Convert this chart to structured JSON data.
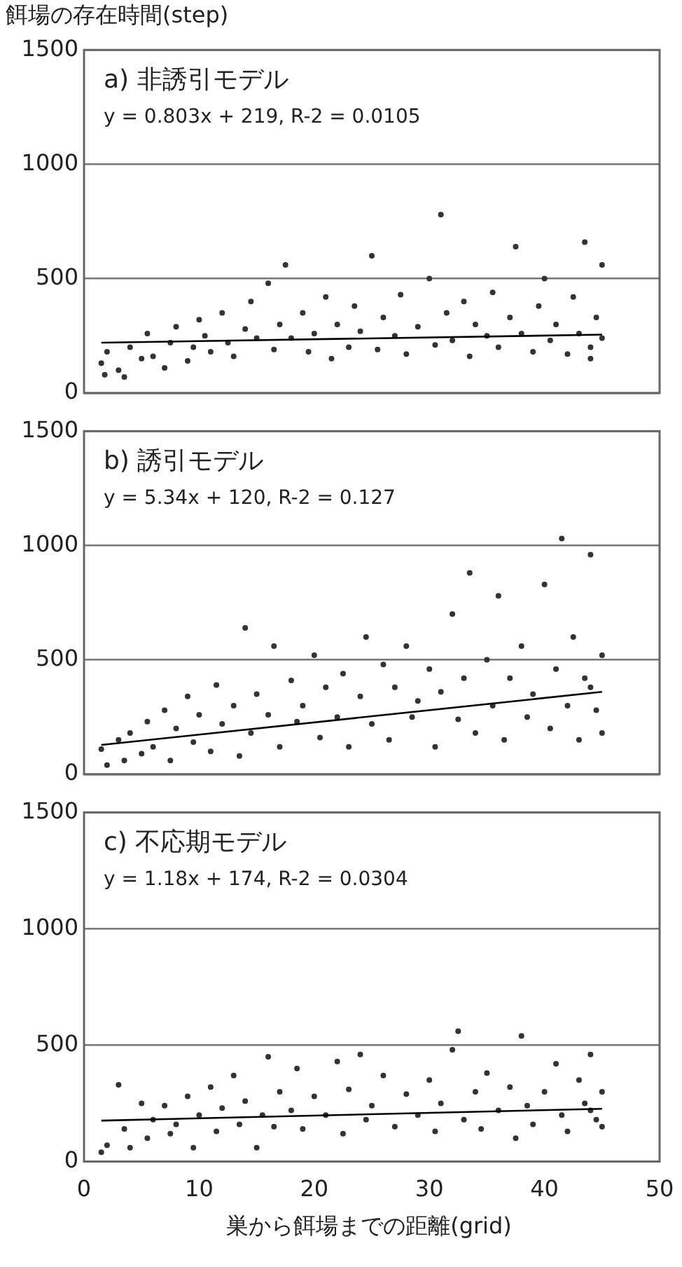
{
  "chart_data": [
    {
      "type": "scatter",
      "title": "a) 非誘引モデル",
      "subtitle": "y = 0.803x + 219, R-2 = 0.0105",
      "ylabel": "餌場の存在時間(step)",
      "xlim": [
        0,
        50
      ],
      "xticks": [
        0,
        10,
        20,
        30,
        40,
        50
      ],
      "ylim": [
        0,
        1500
      ],
      "yticks": [
        0,
        500,
        1000,
        1500
      ],
      "grid": "y",
      "tick_labels": "y",
      "series": [
        {
          "color": "#333333",
          "marker": "circle",
          "x": [
            1.5,
            1.8,
            2,
            3,
            3.5,
            4,
            5,
            5.5,
            6,
            7,
            7.5,
            8,
            9,
            9.5,
            10,
            10.5,
            11,
            12,
            12.5,
            13,
            14,
            14.5,
            15,
            16,
            16.5,
            17,
            17.5,
            18,
            19,
            19.5,
            20,
            21,
            21.5,
            22,
            23,
            23.5,
            24,
            25,
            25.5,
            26,
            27,
            27.5,
            28,
            29,
            30,
            30.5,
            31,
            31.5,
            32,
            33,
            33.5,
            34,
            35,
            35.5,
            36,
            37,
            37.5,
            38,
            39,
            39.5,
            40,
            40.5,
            41,
            42,
            42.5,
            43,
            43.5,
            44,
            44.5,
            45,
            45,
            44
          ],
          "values": [
            130,
            80,
            180,
            100,
            70,
            200,
            150,
            260,
            160,
            110,
            220,
            290,
            140,
            200,
            320,
            250,
            180,
            350,
            220,
            160,
            280,
            400,
            240,
            480,
            190,
            300,
            560,
            240,
            350,
            180,
            260,
            420,
            150,
            300,
            200,
            380,
            270,
            600,
            190,
            330,
            250,
            430,
            170,
            290,
            500,
            210,
            780,
            350,
            230,
            400,
            160,
            300,
            250,
            440,
            200,
            330,
            640,
            260,
            180,
            380,
            500,
            230,
            300,
            170,
            420,
            260,
            660,
            200,
            330,
            560,
            240,
            150
          ]
        },
        {
          "type": "line",
          "color": "#000000",
          "marker": "none",
          "x": [
            1.5,
            45
          ],
          "values": [
            220,
            255
          ]
        }
      ]
    },
    {
      "type": "scatter",
      "title": "b) 誘引モデル",
      "subtitle": "y = 5.34x + 120, R-2 = 0.127",
      "xlim": [
        0,
        50
      ],
      "xticks": [
        0,
        10,
        20,
        30,
        40,
        50
      ],
      "ylim": [
        0,
        1500
      ],
      "yticks": [
        0,
        500,
        1000,
        1500
      ],
      "grid": "y",
      "tick_labels": "y",
      "series": [
        {
          "color": "#333333",
          "marker": "circle",
          "x": [
            1.5,
            2,
            3,
            3.5,
            4,
            5,
            5.5,
            6,
            7,
            7.5,
            8,
            9,
            9.5,
            10,
            11,
            11.5,
            12,
            13,
            13.5,
            14,
            14.5,
            15,
            16,
            16.5,
            17,
            18,
            18.5,
            19,
            20,
            20.5,
            21,
            22,
            22.5,
            23,
            24,
            24.5,
            25,
            26,
            26.5,
            27,
            28,
            28.5,
            29,
            30,
            30.5,
            31,
            32,
            32.5,
            33,
            33.5,
            34,
            35,
            35.5,
            36,
            36.5,
            37,
            38,
            38.5,
            39,
            40,
            40.5,
            41,
            41.5,
            42,
            42.5,
            43,
            43.5,
            44,
            44.5,
            45,
            45,
            44
          ],
          "values": [
            110,
            40,
            150,
            60,
            180,
            90,
            230,
            120,
            280,
            60,
            200,
            340,
            140,
            260,
            100,
            390,
            220,
            300,
            80,
            640,
            180,
            350,
            260,
            560,
            120,
            410,
            230,
            300,
            520,
            160,
            380,
            250,
            440,
            120,
            340,
            600,
            220,
            480,
            150,
            380,
            560,
            250,
            320,
            460,
            120,
            360,
            700,
            240,
            420,
            880,
            180,
            500,
            300,
            780,
            150,
            420,
            560,
            250,
            350,
            830,
            200,
            460,
            1030,
            300,
            600,
            150,
            420,
            960,
            280,
            520,
            180,
            380
          ]
        },
        {
          "type": "line",
          "color": "#000000",
          "marker": "none",
          "x": [
            1.5,
            45
          ],
          "values": [
            128,
            360
          ]
        }
      ]
    },
    {
      "type": "scatter",
      "title": "c) 不応期モデル",
      "subtitle": "y = 1.18x + 174, R-2 = 0.0304",
      "xlabel": "巣から餌場までの距離(grid)",
      "xlim": [
        0,
        50
      ],
      "xticks": [
        0,
        10,
        20,
        30,
        40,
        50
      ],
      "ylim": [
        0,
        1500
      ],
      "yticks": [
        0,
        500,
        1000,
        1500
      ],
      "grid": "y",
      "series": [
        {
          "color": "#333333",
          "marker": "circle",
          "x": [
            1.5,
            2,
            3,
            3.5,
            4,
            5,
            5.5,
            6,
            7,
            7.5,
            8,
            9,
            9.5,
            10,
            11,
            11.5,
            12,
            13,
            13.5,
            14,
            15,
            15.5,
            16,
            16.5,
            17,
            18,
            18.5,
            19,
            20,
            21,
            22,
            22.5,
            23,
            24,
            24.5,
            25,
            26,
            27,
            28,
            29,
            30,
            30.5,
            31,
            32,
            32.5,
            33,
            34,
            34.5,
            35,
            36,
            37,
            37.5,
            38,
            38.5,
            39,
            40,
            41,
            41.5,
            42,
            43,
            43.5,
            44,
            44.5,
            45,
            45,
            44
          ],
          "values": [
            40,
            70,
            330,
            140,
            60,
            250,
            100,
            180,
            240,
            120,
            160,
            280,
            60,
            200,
            320,
            130,
            230,
            370,
            160,
            260,
            60,
            200,
            450,
            150,
            300,
            220,
            400,
            140,
            280,
            200,
            430,
            120,
            310,
            460,
            180,
            240,
            370,
            150,
            290,
            200,
            350,
            130,
            250,
            480,
            560,
            180,
            300,
            140,
            380,
            220,
            320,
            100,
            540,
            240,
            160,
            300,
            420,
            200,
            130,
            350,
            250,
            460,
            180,
            300,
            150,
            220
          ]
        },
        {
          "type": "line",
          "color": "#000000",
          "marker": "none",
          "x": [
            1.5,
            45
          ],
          "values": [
            176,
            227
          ]
        }
      ]
    }
  ]
}
